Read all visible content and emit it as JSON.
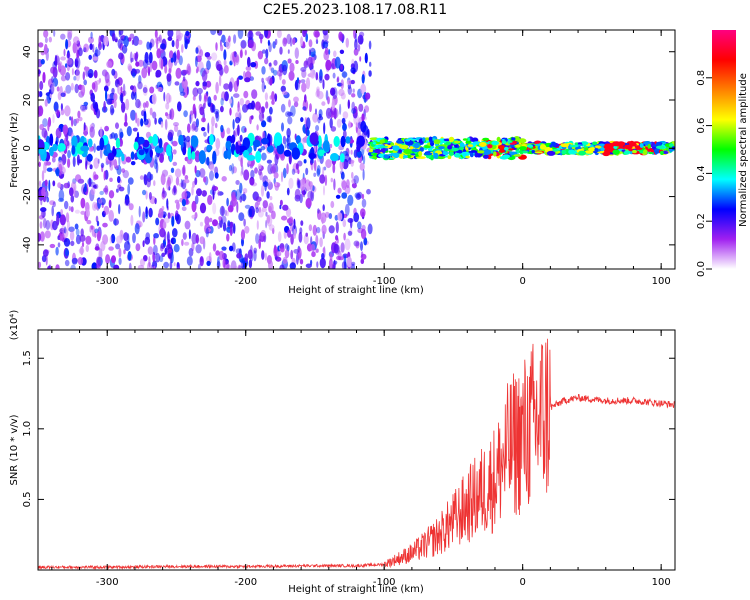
{
  "figure": {
    "title": "C2E5.2023.108.17.08.R11"
  },
  "chart_data": [
    {
      "type": "heatmap",
      "xlabel": "Height of straight line (km)",
      "ylabel": "Frequency (Hz)",
      "xlim": [
        -350,
        110
      ],
      "ylim": [
        -50,
        49
      ],
      "xticks": [
        -300,
        -200,
        -100,
        0,
        100
      ],
      "yticks": [
        -40,
        -20,
        0,
        20,
        40
      ],
      "colorbar": {
        "label": "Normalized spectral amplitude",
        "range": [
          0.0,
          1.0
        ],
        "ticks": [
          0.0,
          0.2,
          0.4,
          0.6,
          0.8
        ],
        "colors": [
          "#ffffff",
          "#a020f0",
          "#0000ff",
          "#00ffff",
          "#00ff00",
          "#ffff00",
          "#ff8000",
          "#ff0000",
          "#ff0080"
        ]
      },
      "regions": [
        {
          "x": [
            -350,
            -110
          ],
          "y": [
            -50,
            49
          ],
          "amplitude": 0.15,
          "description": "broadband noise"
        },
        {
          "x": [
            -110,
            110
          ],
          "y": [
            -4,
            4
          ],
          "amplitude": 0.5,
          "description": "narrow carrier band centred near 0 Hz"
        }
      ]
    },
    {
      "type": "line",
      "xlabel": "Height of straight line (km)",
      "ylabel": "SNR (10 * v/v)",
      "y_multiplier": "(x10⁴)",
      "xlim": [
        -350,
        110
      ],
      "ylim": [
        0,
        1.7
      ],
      "xticks": [
        -300,
        -200,
        -100,
        0,
        100
      ],
      "yticks": [
        0.5,
        1.0,
        1.5
      ],
      "ytick_labels": [
        "0.5",
        "1.0",
        "1.5"
      ],
      "series": [
        {
          "name": "SNR",
          "color": "#ee3333",
          "x": [
            -350,
            -300,
            -250,
            -200,
            -150,
            -120,
            -100,
            -90,
            -80,
            -70,
            -60,
            -50,
            -40,
            -30,
            -20,
            -15,
            -10,
            0,
            10,
            20,
            30,
            40,
            60,
            80,
            100,
            110
          ],
          "y": [
            0.02,
            0.02,
            0.025,
            0.025,
            0.03,
            0.03,
            0.04,
            0.08,
            0.12,
            0.18,
            0.25,
            0.35,
            0.45,
            0.55,
            0.65,
            0.75,
            0.85,
            0.95,
            1.05,
            1.15,
            1.2,
            1.22,
            1.2,
            1.2,
            1.18,
            1.17
          ]
        }
      ]
    }
  ]
}
